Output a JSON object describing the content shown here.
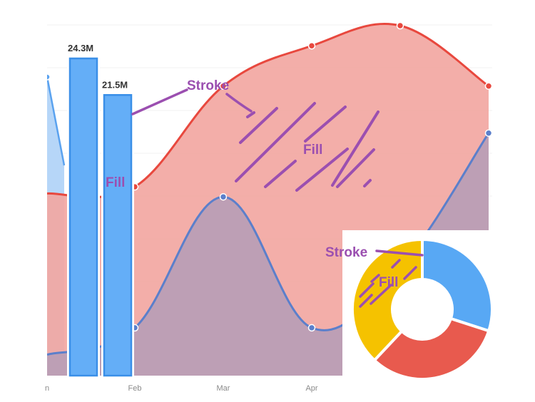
{
  "chart_data": [
    {
      "type": "area",
      "x_tick_labels": [
        "Jan",
        "Feb",
        "Mar",
        "Apr"
      ],
      "x_tick_labels_visible": [
        "n",
        "Feb",
        "Mar",
        "Apr"
      ],
      "series": [
        {
          "values": [
            0.5,
            0.52,
            0.82,
            0.94,
            1.0,
            0.82
          ],
          "stroke": "#e8483e",
          "fill": "#f2a7a2"
        },
        {
          "values": [
            0.02,
            0.1,
            0.49,
            0.1,
            0.28,
            0.68
          ],
          "stroke": "#5b7fcb",
          "fill": "#b79db6"
        }
      ],
      "grid": true
    },
    {
      "type": "bar",
      "values": [
        24.3,
        21.5
      ],
      "value_labels": [
        "24.3M",
        "21.5M"
      ],
      "fill": "#64aef7",
      "stroke": "#3a8fe8"
    },
    {
      "type": "pie",
      "style": "donut",
      "values": [
        30,
        32,
        38
      ],
      "colors": [
        "#58a8f4",
        "#e85a4e",
        "#f5c200"
      ]
    }
  ],
  "annotations": {
    "stroke_main": "Stroke",
    "fill_bar": "Fill",
    "fill_area": "Fill",
    "stroke_donut": "Stroke",
    "fill_donut": "Fill",
    "color": "#9b4fb0"
  }
}
